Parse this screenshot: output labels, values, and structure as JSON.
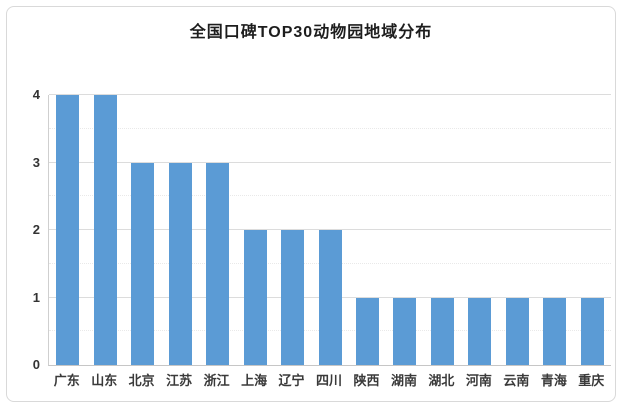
{
  "chart_data": {
    "type": "bar",
    "title": "全国口碑TOP30动物园地域分布",
    "categories": [
      "广东",
      "山东",
      "北京",
      "江苏",
      "浙江",
      "上海",
      "辽宁",
      "四川",
      "陕西",
      "湖南",
      "湖北",
      "河南",
      "云南",
      "青海",
      "重庆"
    ],
    "values": [
      4,
      4,
      3,
      3,
      3,
      2,
      2,
      2,
      1,
      1,
      1,
      1,
      1,
      1,
      1
    ],
    "xlabel": "",
    "ylabel": "",
    "ylim": [
      0,
      4
    ],
    "yticks": [
      0,
      1,
      2,
      3,
      4
    ],
    "minor_gridlines": [
      0.5,
      1.5,
      2.5,
      3.5
    ],
    "major_gridlines": [
      1,
      2,
      3,
      4
    ],
    "grid": true,
    "legend_position": "none",
    "bar_color": "#5B9BD5"
  }
}
